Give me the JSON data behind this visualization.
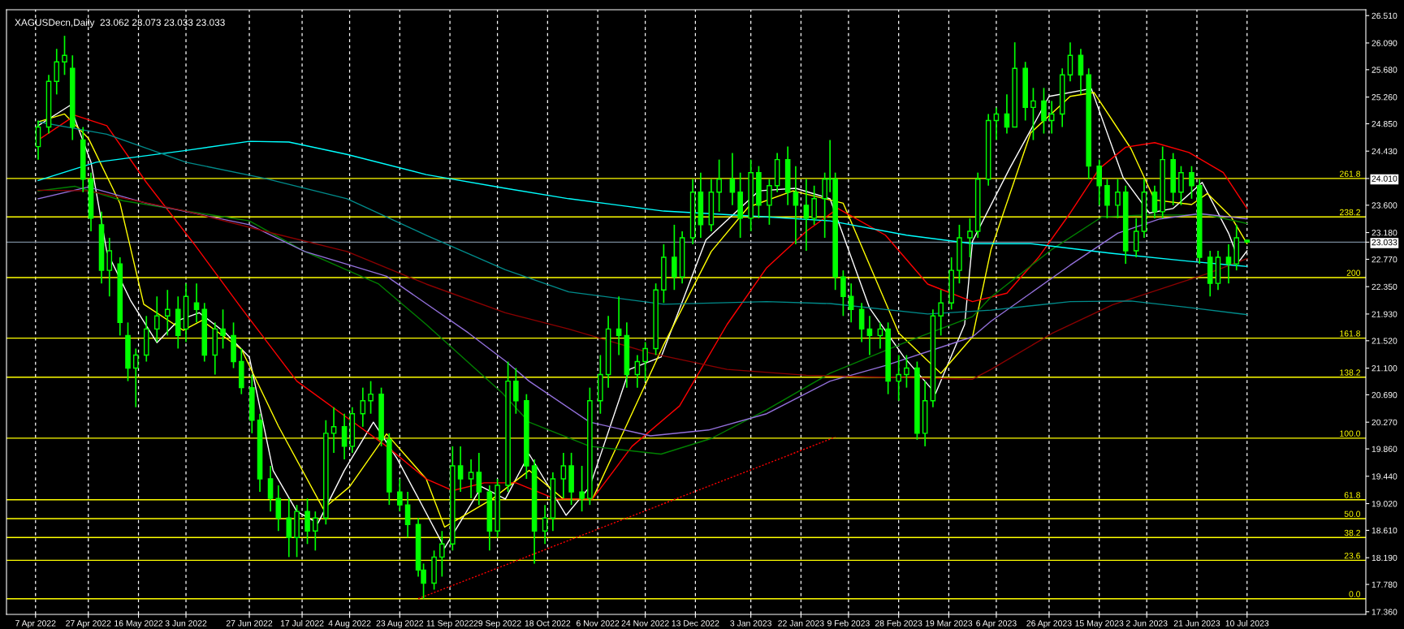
{
  "chart_data": {
    "type": "candlestick",
    "title": "XAGUSDecn,Daily  23.062 23.073 23.033 23.033",
    "color": "#00ff00",
    "x": [
      "2022-04-08",
      "2022-04-12",
      "2022-04-15",
      "2022-04-18",
      "2022-04-21",
      "2022-04-25",
      "2022-04-28",
      "2022-05-02",
      "2022-05-05",
      "2022-05-09",
      "2022-05-12",
      "2022-05-15",
      "2022-05-19",
      "2022-05-23",
      "2022-05-27",
      "2022-05-31",
      "2022-06-03",
      "2022-06-07",
      "2022-06-10",
      "2022-06-14",
      "2022-06-17",
      "2022-06-21",
      "2022-06-24",
      "2022-06-28",
      "2022-07-01",
      "2022-07-05",
      "2022-07-08",
      "2022-07-12",
      "2022-07-15",
      "2022-07-19",
      "2022-07-22",
      "2022-07-26",
      "2022-07-29",
      "2022-08-02",
      "2022-08-05",
      "2022-08-09",
      "2022-08-12",
      "2022-08-16",
      "2022-08-19",
      "2022-08-23",
      "2022-08-26",
      "2022-08-30",
      "2022-09-01",
      "2022-09-05",
      "2022-09-08",
      "2022-09-12",
      "2022-09-15",
      "2022-09-19",
      "2022-09-22",
      "2022-09-26",
      "2022-09-29",
      "2022-10-03",
      "2022-10-06",
      "2022-10-10",
      "2022-10-13",
      "2022-10-17",
      "2022-10-20",
      "2022-10-24",
      "2022-10-27",
      "2022-10-31",
      "2022-11-03",
      "2022-11-07",
      "2022-11-10",
      "2022-11-14",
      "2022-11-17",
      "2022-11-21",
      "2022-11-24",
      "2022-11-28",
      "2022-12-01",
      "2022-12-05",
      "2022-12-08",
      "2022-12-12",
      "2022-12-15",
      "2022-12-19",
      "2022-12-22",
      "2022-12-27",
      "2022-12-30",
      "2023-01-03",
      "2023-01-06",
      "2023-01-10",
      "2023-01-13",
      "2023-01-17",
      "2023-01-20",
      "2023-01-24",
      "2023-01-27",
      "2023-01-31",
      "2023-02-02",
      "2023-02-04",
      "2023-02-07",
      "2023-02-10",
      "2023-02-14",
      "2023-02-17",
      "2023-02-21",
      "2023-02-24",
      "2023-02-28",
      "2023-03-03",
      "2023-03-07",
      "2023-03-10",
      "2023-03-13",
      "2023-03-16",
      "2023-03-20",
      "2023-03-23",
      "2023-03-27",
      "2023-03-30",
      "2023-04-03",
      "2023-04-06",
      "2023-04-10",
      "2023-04-13",
      "2023-04-17",
      "2023-04-20",
      "2023-04-24",
      "2023-04-27",
      "2023-05-01",
      "2023-05-04",
      "2023-05-08",
      "2023-05-11",
      "2023-05-15",
      "2023-05-18",
      "2023-05-22",
      "2023-05-25",
      "2023-05-29",
      "2023-06-01",
      "2023-06-05",
      "2023-06-08",
      "2023-06-12",
      "2023-06-15",
      "2023-06-19",
      "2023-06-22",
      "2023-06-26",
      "2023-06-29",
      "2023-07-03",
      "2023-07-06",
      "2023-07-10"
    ],
    "ohlc": [
      [
        24.5,
        24.9,
        24.3,
        24.8
      ],
      [
        24.8,
        25.6,
        24.7,
        25.5
      ],
      [
        25.5,
        26.0,
        25.3,
        25.8
      ],
      [
        25.8,
        26.2,
        25.6,
        25.9
      ],
      [
        25.7,
        25.9,
        24.6,
        24.8
      ],
      [
        24.6,
        24.8,
        23.8,
        24.0
      ],
      [
        24.0,
        24.1,
        23.2,
        23.4
      ],
      [
        23.3,
        23.5,
        22.4,
        22.6
      ],
      [
        22.6,
        23.1,
        22.2,
        22.9
      ],
      [
        22.7,
        22.8,
        21.6,
        21.8
      ],
      [
        21.6,
        21.8,
        20.9,
        21.1
      ],
      [
        21.1,
        21.4,
        20.5,
        21.3
      ],
      [
        21.3,
        21.9,
        21.2,
        21.7
      ],
      [
        21.7,
        22.2,
        21.5,
        21.9
      ],
      [
        21.9,
        22.3,
        21.6,
        22.0
      ],
      [
        22.0,
        22.2,
        21.4,
        21.6
      ],
      [
        21.7,
        22.4,
        21.5,
        22.2
      ],
      [
        22.1,
        22.4,
        21.8,
        22.0
      ],
      [
        22.0,
        22.1,
        21.2,
        21.3
      ],
      [
        21.3,
        21.8,
        21.0,
        21.7
      ],
      [
        21.7,
        22.0,
        21.4,
        21.6
      ],
      [
        21.6,
        21.8,
        21.1,
        21.2
      ],
      [
        21.2,
        21.4,
        20.7,
        20.8
      ],
      [
        20.8,
        21.0,
        20.1,
        20.3
      ],
      [
        20.3,
        20.4,
        19.2,
        19.4
      ],
      [
        19.4,
        19.6,
        18.9,
        19.1
      ],
      [
        19.1,
        19.3,
        18.6,
        18.8
      ],
      [
        18.8,
        19.1,
        18.2,
        18.5
      ],
      [
        18.5,
        19.0,
        18.2,
        18.9
      ],
      [
        18.9,
        19.1,
        18.4,
        18.6
      ],
      [
        18.6,
        18.9,
        18.3,
        18.8
      ],
      [
        18.8,
        20.3,
        18.7,
        20.1
      ],
      [
        20.1,
        20.5,
        19.8,
        20.2
      ],
      [
        20.2,
        20.4,
        19.7,
        19.9
      ],
      [
        19.9,
        20.5,
        19.8,
        20.4
      ],
      [
        20.4,
        20.8,
        20.2,
        20.6
      ],
      [
        20.6,
        20.9,
        20.4,
        20.7
      ],
      [
        20.7,
        20.8,
        19.9,
        20.0
      ],
      [
        20.0,
        20.1,
        19.0,
        19.2
      ],
      [
        19.2,
        19.4,
        18.9,
        19.0
      ],
      [
        19.0,
        19.2,
        18.5,
        18.7
      ],
      [
        18.7,
        18.8,
        17.9,
        18.0
      ],
      [
        18.0,
        18.1,
        17.56,
        17.8
      ],
      [
        17.8,
        18.3,
        17.7,
        18.2
      ],
      [
        18.2,
        18.6,
        17.9,
        18.4
      ],
      [
        18.4,
        19.9,
        18.3,
        19.6
      ],
      [
        19.6,
        19.9,
        19.2,
        19.4
      ],
      [
        19.4,
        19.7,
        19.1,
        19.5
      ],
      [
        19.5,
        19.8,
        19.0,
        19.2
      ],
      [
        19.2,
        19.3,
        18.3,
        18.6
      ],
      [
        18.6,
        19.4,
        18.5,
        19.3
      ],
      [
        19.3,
        21.2,
        19.2,
        20.9
      ],
      [
        20.9,
        21.1,
        20.4,
        20.6
      ],
      [
        20.6,
        20.7,
        19.4,
        19.6
      ],
      [
        19.6,
        19.7,
        18.1,
        18.6
      ],
      [
        18.6,
        19.0,
        18.4,
        18.8
      ],
      [
        18.8,
        19.5,
        18.6,
        19.4
      ],
      [
        19.4,
        19.8,
        19.1,
        19.6
      ],
      [
        19.6,
        19.8,
        19.0,
        19.2
      ],
      [
        19.2,
        19.6,
        18.9,
        19.1
      ],
      [
        19.1,
        20.8,
        19.0,
        20.6
      ],
      [
        20.6,
        21.3,
        20.4,
        21.0
      ],
      [
        21.0,
        21.9,
        20.8,
        21.7
      ],
      [
        21.7,
        22.2,
        21.3,
        21.6
      ],
      [
        21.6,
        21.8,
        20.8,
        21.0
      ],
      [
        21.0,
        21.3,
        20.8,
        21.2
      ],
      [
        21.2,
        21.5,
        20.9,
        21.4
      ],
      [
        21.4,
        22.4,
        21.3,
        22.3
      ],
      [
        22.3,
        23.0,
        22.1,
        22.8
      ],
      [
        22.8,
        23.3,
        22.3,
        22.5
      ],
      [
        22.5,
        23.2,
        22.4,
        23.1
      ],
      [
        23.1,
        24.0,
        23.0,
        23.8
      ],
      [
        23.8,
        24.1,
        23.1,
        23.3
      ],
      [
        23.3,
        24.0,
        23.2,
        23.8
      ],
      [
        23.8,
        24.3,
        23.5,
        24.0
      ],
      [
        24.0,
        24.4,
        23.6,
        23.8
      ],
      [
        23.8,
        24.1,
        23.1,
        23.4
      ],
      [
        23.4,
        24.3,
        23.2,
        24.1
      ],
      [
        24.1,
        24.2,
        23.4,
        23.6
      ],
      [
        23.6,
        24.0,
        23.3,
        23.9
      ],
      [
        23.9,
        24.4,
        23.8,
        24.3
      ],
      [
        24.3,
        24.5,
        23.6,
        23.8
      ],
      [
        23.8,
        24.2,
        23.0,
        23.6
      ],
      [
        23.6,
        24.0,
        22.9,
        23.4
      ],
      [
        23.4,
        23.9,
        23.3,
        23.7
      ],
      [
        23.7,
        24.1,
        23.1,
        24.0
      ],
      [
        24.0,
        24.6,
        23.8,
        24.0
      ],
      [
        24.0,
        24.1,
        22.3,
        22.5
      ],
      [
        22.5,
        22.6,
        21.9,
        22.2
      ],
      [
        22.2,
        22.4,
        21.8,
        22.0
      ],
      [
        22.0,
        22.1,
        21.5,
        21.7
      ],
      [
        21.7,
        21.9,
        21.3,
        21.6
      ],
      [
        21.6,
        21.8,
        21.4,
        21.7
      ],
      [
        21.7,
        21.8,
        20.7,
        20.9
      ],
      [
        20.9,
        21.3,
        20.6,
        21.0
      ],
      [
        21.0,
        21.3,
        20.8,
        21.1
      ],
      [
        21.1,
        21.2,
        20.0,
        20.1
      ],
      [
        20.1,
        20.9,
        19.9,
        20.6
      ],
      [
        20.6,
        22.0,
        20.5,
        21.9
      ],
      [
        21.9,
        22.3,
        21.6,
        22.1
      ],
      [
        22.1,
        22.8,
        22.0,
        22.6
      ],
      [
        22.6,
        23.3,
        22.4,
        23.1
      ],
      [
        23.1,
        23.4,
        22.8,
        23.2
      ],
      [
        23.2,
        24.1,
        23.1,
        24.0
      ],
      [
        24.0,
        25.0,
        23.9,
        24.9
      ],
      [
        24.9,
        25.1,
        24.6,
        25.0
      ],
      [
        25.0,
        25.3,
        24.7,
        24.8
      ],
      [
        24.8,
        26.1,
        24.8,
        25.7
      ],
      [
        25.7,
        25.8,
        24.9,
        25.1
      ],
      [
        25.1,
        25.4,
        24.6,
        25.2
      ],
      [
        25.2,
        25.4,
        24.7,
        24.9
      ],
      [
        24.9,
        25.2,
        24.7,
        25.0
      ],
      [
        25.0,
        25.7,
        24.8,
        25.6
      ],
      [
        25.6,
        26.1,
        25.5,
        25.9
      ],
      [
        25.9,
        26.0,
        25.3,
        25.6
      ],
      [
        25.6,
        25.7,
        24.0,
        24.2
      ],
      [
        24.2,
        24.3,
        23.6,
        23.9
      ],
      [
        23.9,
        24.0,
        23.4,
        23.6
      ],
      [
        23.6,
        24.0,
        23.4,
        23.8
      ],
      [
        23.8,
        23.9,
        22.7,
        22.9
      ],
      [
        22.9,
        23.4,
        22.8,
        23.2
      ],
      [
        23.2,
        24.0,
        23.1,
        23.8
      ],
      [
        23.8,
        23.9,
        23.4,
        23.5
      ],
      [
        23.5,
        24.5,
        23.4,
        24.3
      ],
      [
        24.3,
        24.4,
        23.6,
        23.8
      ],
      [
        23.8,
        24.2,
        23.6,
        24.1
      ],
      [
        24.1,
        24.2,
        23.7,
        23.9
      ],
      [
        23.9,
        24.0,
        22.7,
        22.8
      ],
      [
        22.8,
        22.9,
        22.2,
        22.4
      ],
      [
        22.4,
        22.9,
        22.3,
        22.8
      ],
      [
        22.8,
        23.0,
        22.4,
        22.7
      ],
      [
        22.7,
        23.3,
        22.6,
        23.1
      ],
      [
        23.062,
        23.073,
        23.033,
        23.033
      ]
    ],
    "series": [
      {
        "type": "line",
        "color": "#ffffff",
        "x": [
          "2022-04-08",
          "2022-04-20",
          "2022-04-28",
          "2022-05-04",
          "2022-05-13",
          "2022-05-23",
          "2022-05-31",
          "2022-06-08",
          "2022-06-18",
          "2022-06-27",
          "2022-07-06",
          "2022-07-15",
          "2022-07-23",
          "2022-08-02",
          "2022-08-13",
          "2022-08-22",
          "2022-08-31",
          "2022-09-09",
          "2022-09-23",
          "2022-10-02",
          "2022-10-11",
          "2022-10-25",
          "2022-11-03",
          "2022-11-18",
          "2022-11-30",
          "2022-12-17",
          "2023-01-06",
          "2023-01-20",
          "2023-02-02",
          "2023-02-17",
          "2023-03-02",
          "2023-03-14",
          "2023-03-25",
          "2023-03-28",
          "2023-04-11",
          "2023-04-26",
          "2023-05-12",
          "2023-05-24",
          "2023-06-03",
          "2023-06-12",
          "2023-06-23",
          "2023-07-03",
          "2023-07-07",
          "2023-07-10"
        ],
        "values": [
          24.82,
          25.13,
          24.26,
          22.89,
          22.14,
          21.49,
          21.83,
          21.95,
          21.64,
          21.27,
          19.53,
          18.9,
          18.72,
          19.53,
          20.27,
          19.71,
          19.03,
          18.34,
          19.28,
          19.09,
          19.78,
          18.84,
          19.28,
          21.08,
          21.27,
          23.07,
          23.82,
          23.86,
          23.7,
          22.02,
          21.27,
          20.71,
          21.77,
          23.05,
          24.16,
          25.27,
          25.39,
          24.03,
          23.48,
          23.55,
          23.95,
          23.17,
          22.74,
          22.9
        ]
      },
      {
        "type": "line",
        "color": "#ffff00",
        "x": [
          "2022-04-08",
          "2022-04-18",
          "2022-04-27",
          "2022-05-09",
          "2022-05-18",
          "2022-06-02",
          "2022-06-09",
          "2022-06-24",
          "2022-07-08",
          "2022-07-25",
          "2022-08-04",
          "2022-08-18",
          "2022-09-02",
          "2022-09-09",
          "2022-09-27",
          "2022-10-11",
          "2022-10-24",
          "2022-11-04",
          "2022-12-01",
          "2022-12-19",
          "2023-01-02",
          "2023-01-19",
          "2023-02-07",
          "2023-02-28",
          "2023-03-16",
          "2023-03-28",
          "2023-04-04",
          "2023-04-19",
          "2023-05-04",
          "2023-05-13",
          "2023-05-27",
          "2023-06-05",
          "2023-06-19",
          "2023-06-25",
          "2023-07-04",
          "2023-07-10"
        ],
        "values": [
          24.88,
          25.0,
          24.63,
          23.63,
          22.08,
          21.68,
          21.83,
          21.39,
          20.21,
          18.94,
          19.28,
          20.09,
          19.4,
          18.66,
          19.09,
          19.53,
          19.09,
          19.09,
          21.46,
          22.89,
          23.57,
          23.82,
          23.63,
          21.64,
          21.02,
          21.58,
          22.92,
          24.71,
          25.27,
          25.33,
          24.47,
          23.68,
          23.61,
          23.78,
          23.42,
          23.01
        ]
      },
      {
        "type": "line",
        "color": "#ff0000",
        "x": [
          "2022-04-08",
          "2022-04-22",
          "2022-05-04",
          "2022-05-19",
          "2022-06-06",
          "2022-06-24",
          "2022-07-15",
          "2022-08-03",
          "2022-08-18",
          "2022-09-02",
          "2022-09-12",
          "2022-09-24",
          "2022-10-06",
          "2022-10-21",
          "2022-11-04",
          "2022-11-19",
          "2022-12-07",
          "2022-12-25",
          "2023-01-09",
          "2023-01-24",
          "2023-02-05",
          "2023-02-23",
          "2023-03-11",
          "2023-03-28",
          "2023-04-10",
          "2023-04-22",
          "2023-05-04",
          "2023-05-15",
          "2023-05-25",
          "2023-06-05",
          "2023-06-18",
          "2023-07-01",
          "2023-07-10"
        ],
        "values": [
          24.6,
          24.98,
          24.82,
          23.95,
          23.01,
          22.02,
          20.9,
          20.34,
          19.9,
          19.4,
          19.22,
          19.34,
          19.34,
          19.09,
          19.09,
          19.9,
          20.52,
          21.77,
          22.64,
          23.2,
          23.55,
          23.14,
          22.39,
          22.12,
          22.25,
          22.8,
          23.48,
          24.16,
          24.49,
          24.56,
          24.41,
          24.1,
          23.55
        ]
      },
      {
        "type": "line",
        "color": "#008000",
        "x": [
          "2022-04-08",
          "2022-04-22",
          "2022-05-10",
          "2022-05-28",
          "2022-06-27",
          "2022-07-18",
          "2022-08-15",
          "2022-09-02",
          "2022-10-01",
          "2022-10-11",
          "2022-11-03",
          "2022-11-30",
          "2022-12-19",
          "2023-01-09",
          "2023-02-02",
          "2023-03-04",
          "2023-03-28",
          "2023-04-04",
          "2023-04-27",
          "2023-05-16",
          "2023-06-01",
          "2023-06-25",
          "2023-07-10"
        ],
        "values": [
          23.82,
          23.89,
          23.67,
          23.55,
          23.36,
          22.89,
          22.39,
          21.77,
          20.71,
          20.27,
          19.9,
          19.78,
          20.02,
          20.46,
          21.02,
          21.52,
          21.89,
          22.19,
          22.92,
          23.42,
          23.45,
          23.45,
          23.32
        ]
      },
      {
        "type": "line",
        "color": "#9370db",
        "x": [
          "2022-04-08",
          "2022-04-27",
          "2022-05-19",
          "2022-06-27",
          "2022-07-18",
          "2022-08-18",
          "2022-09-18",
          "2022-10-02",
          "2022-10-11",
          "2022-11-03",
          "2022-11-26",
          "2022-12-18",
          "2023-01-09",
          "2023-02-02",
          "2023-02-23",
          "2023-03-28",
          "2023-04-04",
          "2023-04-19",
          "2023-05-04",
          "2023-05-22",
          "2023-06-07",
          "2023-06-22",
          "2023-07-10"
        ],
        "values": [
          23.7,
          23.88,
          23.63,
          23.3,
          22.89,
          22.51,
          21.64,
          21.21,
          20.9,
          20.27,
          20.06,
          20.15,
          20.4,
          20.9,
          21.14,
          21.58,
          21.82,
          22.25,
          22.68,
          23.17,
          23.39,
          23.47,
          23.39
        ]
      },
      {
        "type": "line",
        "color": "#8b0000",
        "x": [
          "2022-04-08",
          "2022-04-27",
          "2022-06-03",
          "2022-07-03",
          "2022-08-03",
          "2022-09-02",
          "2022-10-02",
          "2022-10-26",
          "2022-11-26",
          "2022-12-25",
          "2023-01-24",
          "2023-02-23",
          "2023-03-28",
          "2023-04-04",
          "2023-04-27",
          "2023-05-20",
          "2023-06-07",
          "2023-06-25",
          "2023-07-10"
        ],
        "values": [
          23.83,
          23.82,
          23.51,
          23.2,
          22.89,
          22.39,
          21.95,
          21.7,
          21.33,
          21.08,
          20.99,
          20.96,
          20.93,
          21.08,
          21.63,
          22.07,
          22.31,
          22.55,
          22.78
        ]
      },
      {
        "type": "line",
        "color": "#00ffff",
        "x": [
          "2022-04-08",
          "2022-04-30",
          "2022-06-03",
          "2022-06-27",
          "2022-07-12",
          "2022-08-03",
          "2022-09-02",
          "2022-10-02",
          "2022-10-26",
          "2022-12-01",
          "2023-01-09",
          "2023-02-02",
          "2023-03-03",
          "2023-03-28",
          "2023-04-19",
          "2023-05-20",
          "2023-06-18",
          "2023-07-10"
        ],
        "values": [
          23.98,
          24.26,
          24.44,
          24.58,
          24.57,
          24.38,
          24.07,
          23.86,
          23.7,
          23.51,
          23.42,
          23.36,
          23.14,
          23.01,
          23.01,
          22.86,
          22.74,
          22.66
        ]
      },
      {
        "type": "line",
        "color": "#008b8b",
        "x": [
          "2022-04-08",
          "2022-05-04",
          "2022-06-03",
          "2022-07-03",
          "2022-08-03",
          "2022-09-02",
          "2022-10-02",
          "2022-10-26",
          "2022-12-01",
          "2023-01-09",
          "2023-02-02",
          "2023-03-11",
          "2023-04-04",
          "2023-05-04",
          "2023-05-27",
          "2023-06-18",
          "2023-07-10"
        ],
        "values": [
          24.88,
          24.69,
          24.26,
          24.01,
          23.7,
          23.14,
          22.61,
          22.27,
          22.08,
          22.12,
          22.09,
          21.93,
          21.99,
          22.12,
          22.13,
          22.03,
          21.92
        ]
      },
      {
        "type": "line",
        "color": "#ff0000",
        "line_style": "dotted",
        "x": [
          "2022-08-30",
          "2023-02-04"
        ],
        "values": [
          17.56,
          20.04
        ]
      }
    ],
    "ref_lines": [
      {
        "axis": "y",
        "value": 24.01,
        "color": "#ffff00"
      },
      {
        "axis": "y",
        "value": 23.42,
        "color": "#ffff00"
      },
      {
        "axis": "y",
        "value": 22.49,
        "color": "#ffff00"
      },
      {
        "axis": "y",
        "value": 21.56,
        "color": "#ffff00"
      },
      {
        "axis": "y",
        "value": 20.96,
        "color": "#ffff00"
      },
      {
        "axis": "y",
        "value": 20.025,
        "color": "#ffff00"
      },
      {
        "axis": "y",
        "value": 19.08,
        "color": "#ffff00"
      },
      {
        "axis": "y",
        "value": 18.79,
        "color": "#ffff00"
      },
      {
        "axis": "y",
        "value": 18.5,
        "color": "#ffff00"
      },
      {
        "axis": "y",
        "value": 18.15,
        "color": "#ffff00"
      },
      {
        "axis": "y",
        "value": 17.56,
        "color": "#ffff00"
      },
      {
        "axis": "y",
        "value": 23.033,
        "color": "#778899"
      }
    ],
    "annotations": [
      {
        "text": "261.8",
        "x": "2023-08-22",
        "y": 24.01
      },
      {
        "text": "238.2",
        "x": "2023-08-22",
        "y": 23.42
      },
      {
        "text": "200",
        "x": "2023-08-22",
        "y": 22.49
      },
      {
        "text": "161.8",
        "x": "2023-08-22",
        "y": 21.56
      },
      {
        "text": "138.2",
        "x": "2023-08-22",
        "y": 20.96
      },
      {
        "text": "100.0",
        "x": "2023-08-22",
        "y": 20.025
      },
      {
        "text": "61.8",
        "x": "2023-08-22",
        "y": 19.08
      },
      {
        "text": "50.0",
        "x": "2023-08-22",
        "y": 18.79
      },
      {
        "text": "38.2",
        "x": "2023-08-22",
        "y": 18.5
      },
      {
        "text": "23.6",
        "x": "2023-08-22",
        "y": 18.15
      },
      {
        "text": "0.0",
        "x": "2023-08-22",
        "y": 17.56
      }
    ],
    "xlim": [
      "2022-03-27",
      "2023-08-24"
    ],
    "xticks": [
      {
        "value": "2022-04-07",
        "label": "7 Apr 2022"
      },
      {
        "value": "2022-04-27",
        "label": "27 Apr 2022"
      },
      {
        "value": "2022-05-16",
        "label": "16 May 2022"
      },
      {
        "value": "2022-06-03",
        "label": "3 Jun 2022"
      },
      {
        "value": "2022-06-27",
        "label": "27 Jun 2022"
      },
      {
        "value": "2022-07-17",
        "label": "17 Jul 2022"
      },
      {
        "value": "2022-08-04",
        "label": "4 Aug 2022"
      },
      {
        "value": "2022-08-23",
        "label": "23 Aug 2022"
      },
      {
        "value": "2022-09-11",
        "label": "11 Sep 2022"
      },
      {
        "value": "2022-09-29",
        "label": "29 Sep 2022"
      },
      {
        "value": "2022-10-18",
        "label": "18 Oct 2022"
      },
      {
        "value": "2022-11-06",
        "label": "6 Nov 2022"
      },
      {
        "value": "2022-11-24",
        "label": "24 Nov 2022"
      },
      {
        "value": "2022-12-13",
        "label": "13 Dec 2022"
      },
      {
        "value": "2023-01-03",
        "label": "3 Jan 2023"
      },
      {
        "value": "2023-01-22",
        "label": "22 Jan 2023"
      },
      {
        "value": "2023-02-09",
        "label": "9 Feb 2023"
      },
      {
        "value": "2023-02-28",
        "label": "28 Feb 2023"
      },
      {
        "value": "2023-03-19",
        "label": "19 Mar 2023"
      },
      {
        "value": "2023-04-06",
        "label": "6 Apr 2023"
      },
      {
        "value": "2023-04-26",
        "label": "26 Apr 2023"
      },
      {
        "value": "2023-05-15",
        "label": "15 May 2023"
      },
      {
        "value": "2023-06-02",
        "label": "2 Jun 2023"
      },
      {
        "value": "2023-06-21",
        "label": "21 Jun 2023"
      },
      {
        "value": "2023-07-10",
        "label": "10 Jul 2023"
      }
    ],
    "ylim": [
      17.32,
      26.6
    ],
    "yticks": [
      {
        "value": 17.36,
        "label": "17.360"
      },
      {
        "value": 17.78,
        "label": "17.780"
      },
      {
        "value": 18.19,
        "label": "18.190"
      },
      {
        "value": 18.61,
        "label": "18.610"
      },
      {
        "value": 19.02,
        "label": "19.020"
      },
      {
        "value": 19.44,
        "label": "19.440"
      },
      {
        "value": 19.86,
        "label": "19.860"
      },
      {
        "value": 20.27,
        "label": "20.270"
      },
      {
        "value": 20.69,
        "label": "20.690"
      },
      {
        "value": 21.1,
        "label": "21.100"
      },
      {
        "value": 21.52,
        "label": "21.520"
      },
      {
        "value": 21.93,
        "label": "21.930"
      },
      {
        "value": 22.35,
        "label": "22.350"
      },
      {
        "value": 22.77,
        "label": "22.770"
      },
      {
        "value": 23.033,
        "label": "23.033"
      },
      {
        "value": 23.18,
        "label": "23.180"
      },
      {
        "value": 23.6,
        "label": "23.600"
      },
      {
        "value": 24.01,
        "label": "24.010"
      },
      {
        "value": 24.43,
        "label": "24.430"
      },
      {
        "value": 24.85,
        "label": "24.850"
      },
      {
        "value": 25.26,
        "label": "25.260"
      },
      {
        "value": 25.68,
        "label": "25.680"
      },
      {
        "value": 26.09,
        "label": "26.090"
      },
      {
        "value": 26.51,
        "label": "26.510"
      }
    ],
    "grid": "x",
    "legend": false
  }
}
